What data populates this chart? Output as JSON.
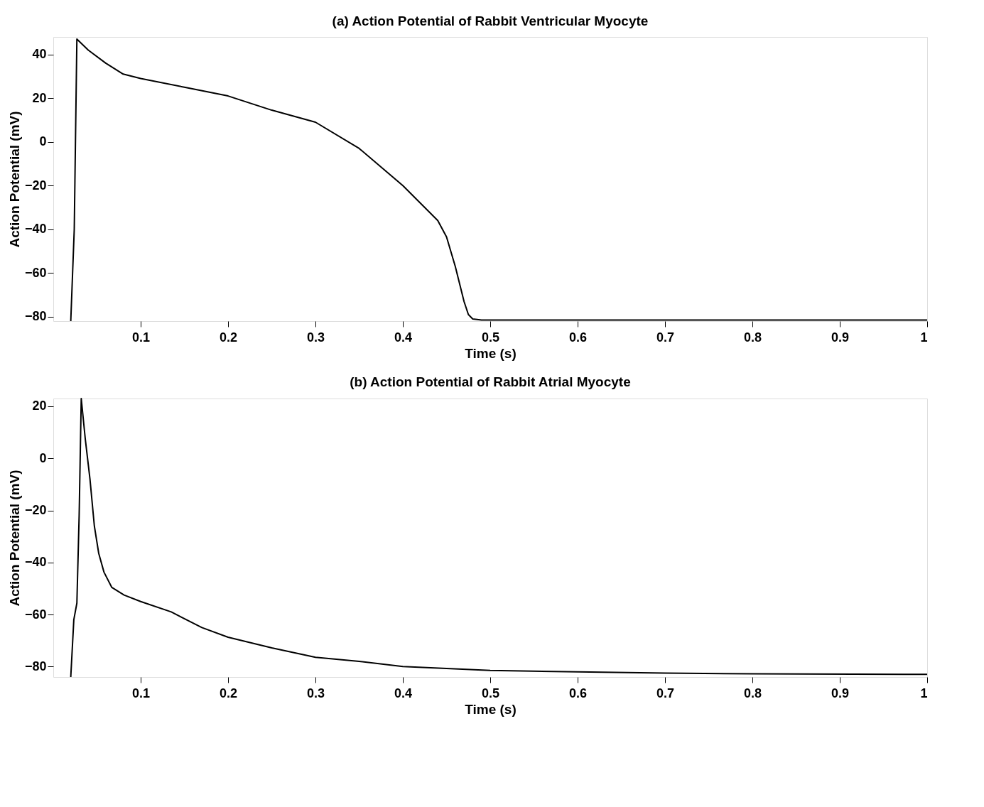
{
  "chart_data": [
    {
      "type": "line",
      "title": "(a) Action Potential of Rabbit Ventricular Myocyte",
      "xlabel": "Time (s)",
      "ylabel": "Action Potential (mV)",
      "x": [
        0.02,
        0.024,
        0.027,
        0.04,
        0.06,
        0.08,
        0.1,
        0.15,
        0.2,
        0.25,
        0.3,
        0.35,
        0.4,
        0.44,
        0.45,
        0.46,
        0.47,
        0.475,
        0.48,
        0.49,
        0.6,
        0.8,
        1.0
      ],
      "series": [
        {
          "color": "#000000",
          "values": [
            -82,
            -40,
            47,
            42,
            36,
            31,
            29,
            25,
            21,
            14.5,
            9,
            -3,
            -20,
            -36,
            -43.5,
            -57,
            -73,
            -79,
            -81,
            -81.5,
            -81.5,
            -81.5,
            -81.5
          ]
        }
      ],
      "xlim": [
        0,
        1
      ],
      "ylim": [
        -82,
        48
      ],
      "xticks": [
        0.1,
        0.2,
        0.3,
        0.4,
        0.5,
        0.6,
        0.7,
        0.8,
        0.9,
        1
      ],
      "yticks": [
        -80,
        -60,
        -40,
        -20,
        0,
        20,
        40
      ],
      "grid": false,
      "line_style": "solid",
      "marker": "none"
    },
    {
      "type": "line",
      "title": "(b) Action Potential of Rabbit Atrial Myocyte",
      "xlabel": "Time (s)",
      "ylabel": "Action Potential (mV)",
      "x": [
        0.02,
        0.0235,
        0.027,
        0.0296,
        0.032,
        0.0366,
        0.042,
        0.047,
        0.052,
        0.058,
        0.067,
        0.081,
        0.1,
        0.135,
        0.17,
        0.2,
        0.25,
        0.3,
        0.35,
        0.4,
        0.5,
        0.6,
        0.7,
        0.8,
        1.0
      ],
      "series": [
        {
          "color": "#000000",
          "values": [
            -84,
            -62,
            -55.6,
            -22,
            23,
            7.5,
            -8,
            -26,
            -36.5,
            -43.7,
            -49.6,
            -52.5,
            -55,
            -59,
            -65,
            -68.7,
            -72.8,
            -76.4,
            -78,
            -80,
            -81.5,
            -82,
            -82.5,
            -82.8,
            -83
          ]
        }
      ],
      "xlim": [
        0,
        1
      ],
      "ylim": [
        -84,
        23
      ],
      "xticks": [
        0.1,
        0.2,
        0.3,
        0.4,
        0.5,
        0.6,
        0.7,
        0.8,
        0.9,
        1
      ],
      "yticks": [
        -80,
        -60,
        -40,
        -20,
        0,
        20
      ],
      "grid": false,
      "line_style": "solid",
      "marker": "none"
    }
  ]
}
